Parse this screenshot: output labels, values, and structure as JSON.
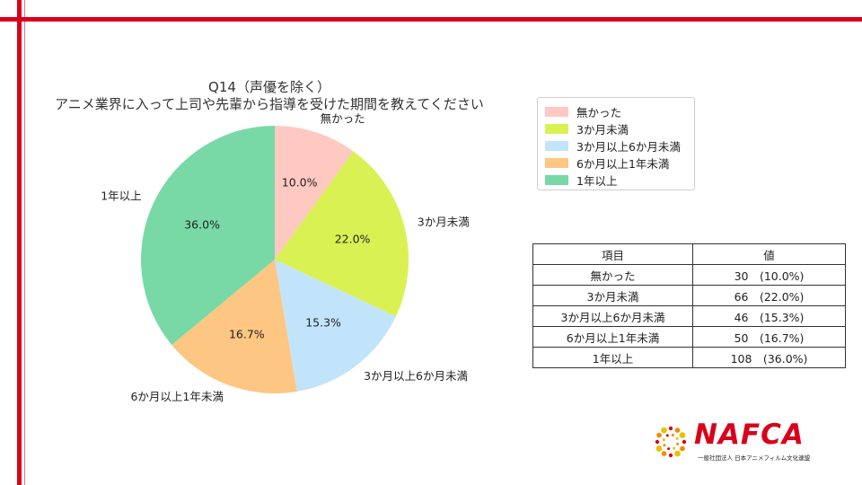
{
  "chart_data": {
    "type": "pie",
    "title": "Q14（声優を除く）",
    "subtitle": "アニメ業界に入って上司や先輩から指導を受けた期間を教えてください",
    "start_angle_deg": 90,
    "direction": "clockwise",
    "legend_placement": "right",
    "slices": [
      {
        "label": "無かった",
        "value": 30,
        "percent": "10.0%",
        "color": "#fdc9c1"
      },
      {
        "label": "3か月未満",
        "value": 66,
        "percent": "22.0%",
        "color": "#daf153"
      },
      {
        "label": "3か月以上6か月未満",
        "value": 46,
        "percent": "15.3%",
        "color": "#c2e4fb"
      },
      {
        "label": "6か月以上1年未満",
        "value": 50,
        "percent": "16.7%",
        "color": "#fdc682"
      },
      {
        "label": "1年以上",
        "value": 108,
        "percent": "36.0%",
        "color": "#78d9a7"
      }
    ]
  },
  "table": {
    "headers": [
      "項目",
      "値"
    ],
    "rows": [
      {
        "item": "無かった",
        "value": "30　(10.0%)"
      },
      {
        "item": "3か月未満",
        "value": "66　(22.0%)"
      },
      {
        "item": "3か月以上6か月未満",
        "value": "46　(15.3%)"
      },
      {
        "item": "6か月以上1年未満",
        "value": "50　(16.7%)"
      },
      {
        "item": "1年以上",
        "value": "108　(36.0%)"
      }
    ]
  },
  "logo": {
    "word": "NAFCA",
    "subtitle": "一般社団法人 日本アニメフィルム文化連盟",
    "color": "#d9001b"
  },
  "frame_color": "#d9001b"
}
